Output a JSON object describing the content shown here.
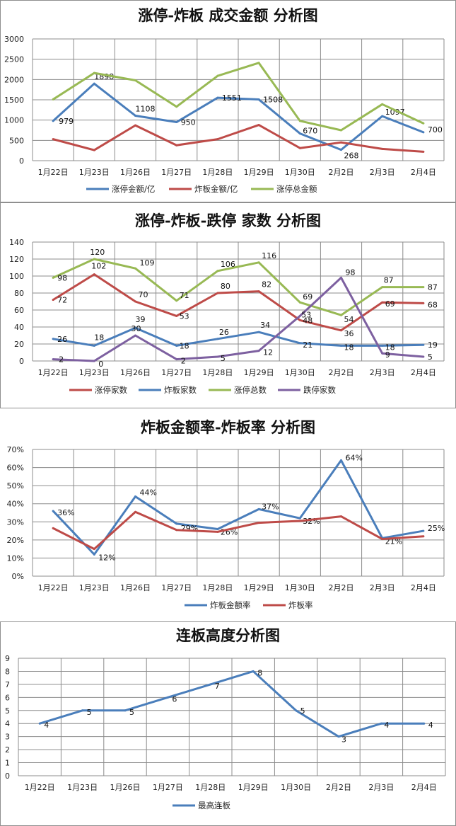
{
  "colors": {
    "blue": "#4a7ebb",
    "red": "#be4b48",
    "green": "#98b954",
    "purple": "#7d60a0",
    "grid": "#8c8c8c"
  },
  "chart_data": [
    {
      "type": "line",
      "title": "涨停-炸板 成交金额 分析图",
      "categories": [
        "1月22日",
        "1月23日",
        "1月26日",
        "1月27日",
        "1月28日",
        "1月29日",
        "1月30日",
        "2月2日",
        "2月3日",
        "2月4日"
      ],
      "ylim": [
        0,
        3000
      ],
      "yticks": [
        0,
        500,
        1000,
        1500,
        2000,
        2500,
        3000
      ],
      "grid": true,
      "legend": "bottom",
      "series": [
        {
          "name": "涨停金额/亿",
          "color": "blue",
          "values": [
            979,
            1898,
            1108,
            950,
            1551,
            1508,
            670,
            268,
            1097,
            700
          ],
          "labels": [
            "979",
            "1898",
            "1108",
            "950",
            "1551",
            "1508",
            "670",
            "268",
            "1097",
            "700"
          ]
        },
        {
          "name": "炸板金额/亿",
          "color": "red",
          "values": [
            530,
            260,
            870,
            380,
            530,
            880,
            310,
            450,
            290,
            220
          ]
        },
        {
          "name": "涨停总金额",
          "color": "green",
          "values": [
            1510,
            2160,
            1980,
            1330,
            2090,
            2410,
            980,
            750,
            1390,
            920
          ]
        }
      ]
    },
    {
      "type": "line",
      "title": "涨停-炸板-跌停 家数 分析图",
      "categories": [
        "1月22日",
        "1月23日",
        "1月26日",
        "1月27日",
        "1月28日",
        "1月29日",
        "1月30日",
        "2月2日",
        "2月3日",
        "2月4日"
      ],
      "ylim": [
        0,
        140
      ],
      "yticks": [
        0,
        20,
        40,
        60,
        80,
        100,
        120,
        140
      ],
      "grid": true,
      "legend": "bottom",
      "series": [
        {
          "name": "涨停家数",
          "color": "red",
          "values": [
            72,
            102,
            70,
            53,
            80,
            82,
            48,
            36,
            69,
            68
          ],
          "labels": [
            "72",
            "102",
            "70",
            "53",
            "80",
            "82",
            "48",
            "36",
            "69",
            "68"
          ]
        },
        {
          "name": "炸板家数",
          "color": "blue",
          "values": [
            26,
            18,
            39,
            18,
            26,
            34,
            21,
            18,
            18,
            19
          ],
          "labels": [
            "26",
            "18",
            "39",
            "18",
            "26",
            "34",
            "21",
            "18",
            "18",
            "19"
          ]
        },
        {
          "name": "涨停总数",
          "color": "green",
          "values": [
            98,
            120,
            109,
            71,
            106,
            116,
            69,
            54,
            87,
            87
          ],
          "labels": [
            "98",
            "120",
            "109",
            "71",
            "106",
            "116",
            "69",
            "54",
            "87",
            "87"
          ]
        },
        {
          "name": "跌停家数",
          "color": "purple",
          "values": [
            2,
            0,
            30,
            2,
            5,
            12,
            53,
            98,
            9,
            5
          ],
          "labels": [
            "2",
            "0",
            "30",
            "2",
            "5",
            "12",
            "53",
            "98",
            "9",
            "5"
          ]
        }
      ]
    },
    {
      "type": "line",
      "title": "炸板金额率-炸板率 分析图",
      "categories": [
        "1月22日",
        "1月23日",
        "1月26日",
        "1月27日",
        "1月28日",
        "1月29日",
        "1月30日",
        "2月2日",
        "2月3日",
        "2月4日"
      ],
      "ylim": [
        0,
        70
      ],
      "yticks": [
        0,
        10,
        20,
        30,
        40,
        50,
        60,
        70
      ],
      "ytick_labels": [
        "0%",
        "10%",
        "20%",
        "30%",
        "40%",
        "50%",
        "60%",
        "70%"
      ],
      "grid": true,
      "legend": "bottom",
      "series": [
        {
          "name": "炸板金额率",
          "color": "blue",
          "values": [
            36,
            12,
            44,
            29,
            26,
            37,
            32,
            64,
            21,
            25
          ],
          "labels": [
            "36%",
            "12%",
            "44%",
            "29%",
            "26%",
            "37%",
            "32%",
            "64%",
            "21%",
            "25%"
          ]
        },
        {
          "name": "炸板率",
          "color": "red",
          "values": [
            26.5,
            15,
            35.5,
            25.5,
            24.5,
            29.5,
            30.5,
            33,
            20.5,
            22
          ]
        }
      ]
    },
    {
      "type": "line",
      "title": "连板高度分析图",
      "categories": [
        "1月22日",
        "1月23日",
        "1月26日",
        "1月27日",
        "1月28日",
        "1月29日",
        "1月30日",
        "2月2日",
        "2月3日",
        "2月4日"
      ],
      "ylim": [
        0,
        9
      ],
      "yticks": [
        0,
        1,
        2,
        3,
        4,
        5,
        6,
        7,
        8,
        9
      ],
      "grid": true,
      "legend": "bottom",
      "series": [
        {
          "name": "最高连板",
          "color": "blue",
          "values": [
            4,
            5,
            5,
            6,
            7,
            8,
            5,
            3,
            4,
            4
          ],
          "labels": [
            "4",
            "5",
            "5",
            "6",
            "7",
            "8",
            "5",
            "3",
            "4",
            "4"
          ]
        }
      ]
    }
  ]
}
